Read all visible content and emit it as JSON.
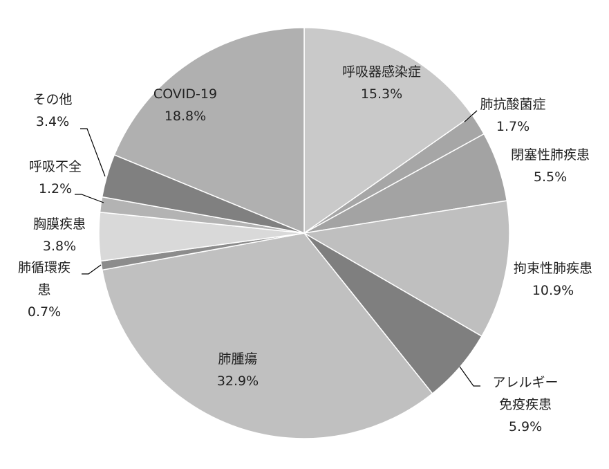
{
  "chart_data": {
    "type": "pie",
    "title": "",
    "slices": [
      {
        "name": "呼吸器感染症",
        "value": 15.3,
        "label_lines": [
          "呼吸器感染症"
        ],
        "value_label": "15.3%",
        "color": "#c9c9c9"
      },
      {
        "name": "肺抗酸菌症",
        "value": 1.7,
        "label_lines": [
          "肺抗酸菌症"
        ],
        "value_label": "1.7%",
        "color": "#a6a6a6"
      },
      {
        "name": "閉塞性肺疾患",
        "value": 5.5,
        "label_lines": [
          "閉塞性肺疾患"
        ],
        "value_label": "5.5%",
        "color": "#a3a3a3"
      },
      {
        "name": "拘束性肺疾患",
        "value": 10.9,
        "label_lines": [
          "拘束性肺疾患"
        ],
        "value_label": "10.9%",
        "color": "#bfbfbf"
      },
      {
        "name": "アレルギー免疫疾患",
        "value": 5.9,
        "label_lines": [
          "アレルギー",
          "免疫疾患"
        ],
        "value_label": "5.9%",
        "color": "#7f7f7f"
      },
      {
        "name": "肺腫瘍",
        "value": 32.9,
        "label_lines": [
          "肺腫瘍"
        ],
        "value_label": "32.9%",
        "color": "#c0c0c0"
      },
      {
        "name": "肺循環疾患",
        "value": 0.7,
        "label_lines": [
          "肺循環疾",
          "患"
        ],
        "value_label": "0.7%",
        "color": "#8c8c8c"
      },
      {
        "name": "胸膜疾患",
        "value": 3.8,
        "label_lines": [
          "胸膜疾患"
        ],
        "value_label": "3.8%",
        "color": "#d9d9d9"
      },
      {
        "name": "呼吸不全",
        "value": 1.2,
        "label_lines": [
          "呼吸不全"
        ],
        "value_label": "1.2%",
        "color": "#b3b3b3"
      },
      {
        "name": "その他",
        "value": 3.4,
        "label_lines": [
          "その他"
        ],
        "value_label": "3.4%",
        "color": "#808080"
      },
      {
        "name": "COVID-19",
        "value": 18.8,
        "label_lines": [
          "COVID-19"
        ],
        "value_label": "18.8%",
        "color": "#b0b0b0"
      }
    ],
    "start_angle": "12 o'clock",
    "direction": "clockwise",
    "legend": "none"
  }
}
